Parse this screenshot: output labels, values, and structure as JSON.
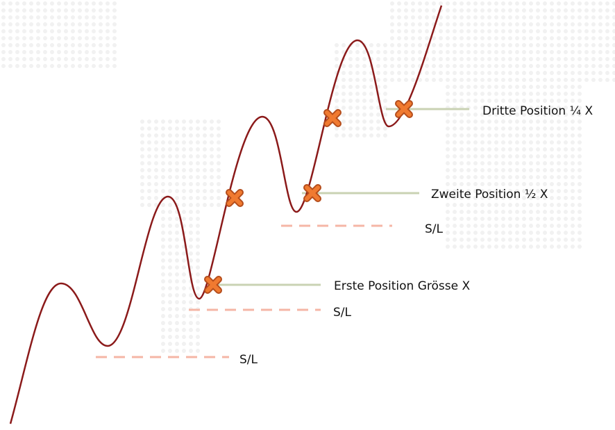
{
  "positions": [
    {
      "label": "Erste Position Grösse X"
    },
    {
      "label": "Zweite Position ½ X"
    },
    {
      "label": "Dritte Position ¼ X"
    }
  ],
  "stop_losses": [
    {
      "label": "S/L"
    },
    {
      "label": "S/L"
    },
    {
      "label": "S/L"
    }
  ]
}
